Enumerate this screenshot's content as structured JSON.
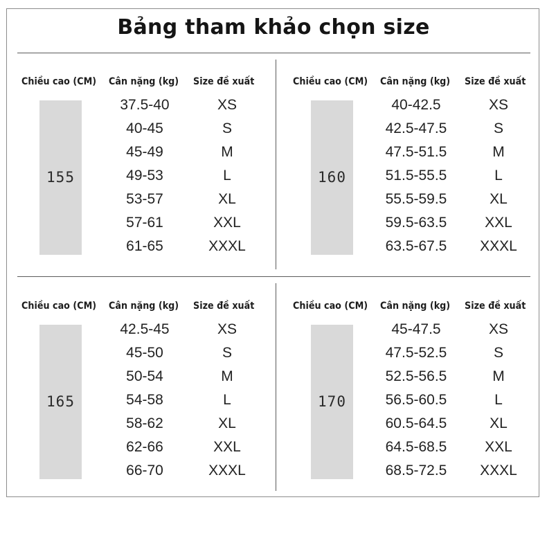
{
  "title": "Bảng tham khảo chọn size",
  "headers": [
    "Chiều cao (CM)",
    "Cân nặng (kg)",
    "Size đề xuất"
  ],
  "tables": [
    {
      "height": "155",
      "rows": [
        {
          "weight": "37.5-40",
          "size": "XS"
        },
        {
          "weight": "40-45",
          "size": "S"
        },
        {
          "weight": "45-49",
          "size": "M"
        },
        {
          "weight": "49-53",
          "size": "L"
        },
        {
          "weight": "53-57",
          "size": "XL"
        },
        {
          "weight": "57-61",
          "size": "XXL"
        },
        {
          "weight": "61-65",
          "size": "XXXL"
        }
      ]
    },
    {
      "height": "160",
      "rows": [
        {
          "weight": "40-42.5",
          "size": "XS"
        },
        {
          "weight": "42.5-47.5",
          "size": "S"
        },
        {
          "weight": "47.5-51.5",
          "size": "M"
        },
        {
          "weight": "51.5-55.5",
          "size": "L"
        },
        {
          "weight": "55.5-59.5",
          "size": "XL"
        },
        {
          "weight": "59.5-63.5",
          "size": "XXL"
        },
        {
          "weight": "63.5-67.5",
          "size": "XXXL"
        }
      ]
    },
    {
      "height": "165",
      "rows": [
        {
          "weight": "42.5-45",
          "size": "XS"
        },
        {
          "weight": "45-50",
          "size": "S"
        },
        {
          "weight": "50-54",
          "size": "M"
        },
        {
          "weight": "54-58",
          "size": "L"
        },
        {
          "weight": "58-62",
          "size": "XL"
        },
        {
          "weight": "62-66",
          "size": "XXL"
        },
        {
          "weight": "66-70",
          "size": "XXXL"
        }
      ]
    },
    {
      "height": "170",
      "rows": [
        {
          "weight": "45-47.5",
          "size": "XS"
        },
        {
          "weight": "47.5-52.5",
          "size": "S"
        },
        {
          "weight": "52.5-56.5",
          "size": "M"
        },
        {
          "weight": "56.5-60.5",
          "size": "L"
        },
        {
          "weight": "60.5-64.5",
          "size": "XL"
        },
        {
          "weight": "64.5-68.5",
          "size": "XXL"
        },
        {
          "weight": "68.5-72.5",
          "size": "XXXL"
        }
      ]
    }
  ]
}
